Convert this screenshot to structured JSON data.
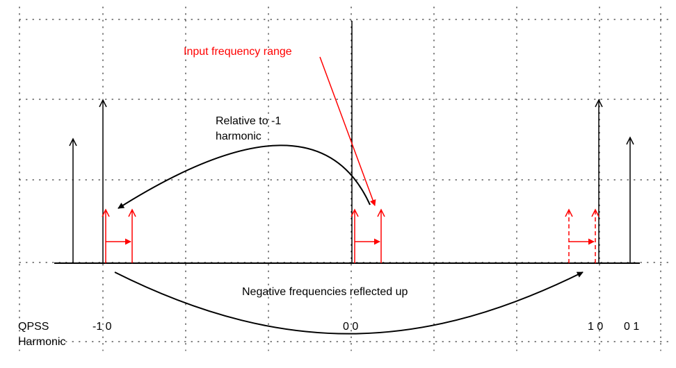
{
  "labels": {
    "input_range": "Input frequency range",
    "relative_line1": "Relative to -1",
    "relative_line2": "harmonic",
    "negative_reflected": "Negative frequencies reflected up",
    "qpss": "QPSS",
    "harmonic": "Harmonic",
    "tick_m10": "-1 0",
    "tick_00": "0 0",
    "tick_10": "1 0",
    "tick_01": "0 1"
  },
  "colors": {
    "tone": "#000000",
    "input": "#ff0000",
    "grid": "#000000",
    "background": "#ffffff"
  },
  "grid": {
    "style": "dotted"
  }
}
